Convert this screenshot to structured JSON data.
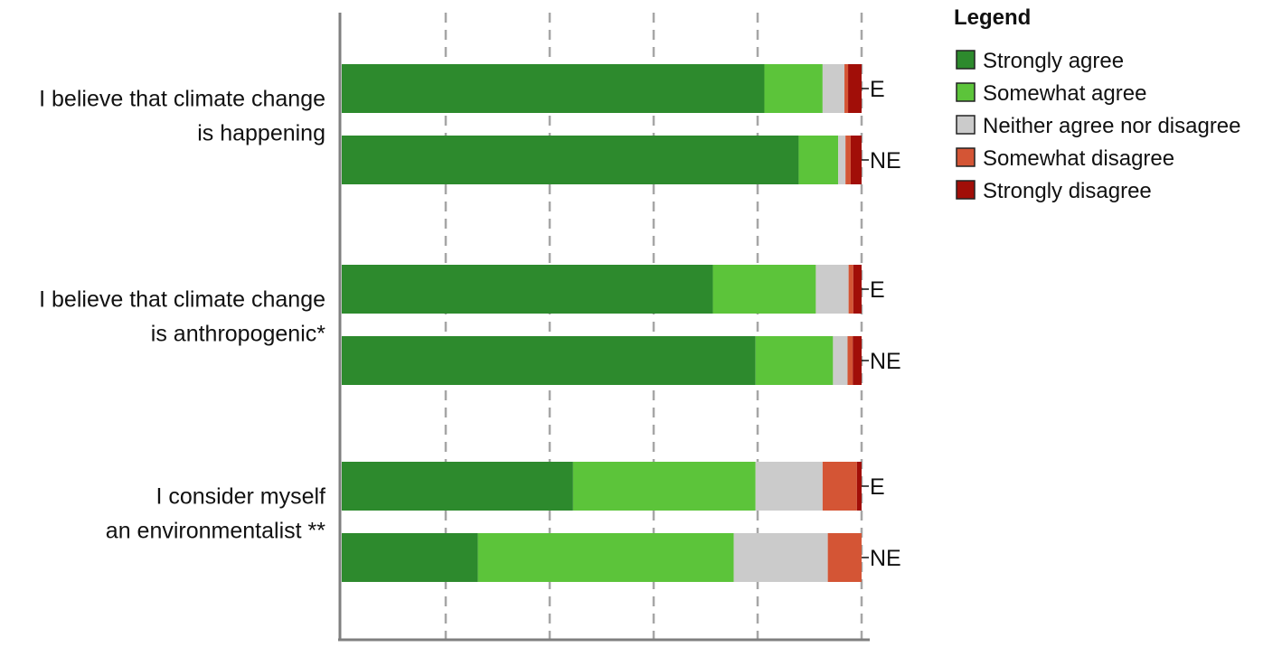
{
  "chart_data": {
    "type": "stacked-bar-horizontal",
    "legend_title": "Legend",
    "legend_placement": "right",
    "xlim": [
      0,
      100
    ],
    "series": [
      {
        "name": "Strongly agree",
        "color": "#2d8a2d"
      },
      {
        "name": "Somewhat agree",
        "color": "#5cc43a"
      },
      {
        "name": "Neither agree nor disagree",
        "color": "#cbcbcb"
      },
      {
        "name": "Somewhat disagree",
        "color": "#d45535"
      },
      {
        "name": "Strongly disagree",
        "color": "#a10e08"
      }
    ],
    "groups": [
      {
        "label_lines": [
          "I believe that climate change",
          "is happening"
        ],
        "bars": [
          {
            "label": "E",
            "values": [
              81.3,
              11.2,
              4.2,
              0.7,
              2.6
            ]
          },
          {
            "label": "NE",
            "values": [
              87.9,
              7.6,
              1.4,
              1.0,
              2.1
            ]
          }
        ]
      },
      {
        "label_lines": [
          "I believe that climate change",
          "is anthropogenic*"
        ],
        "bars": [
          {
            "label": "E",
            "values": [
              71.4,
              19.8,
              6.3,
              0.9,
              1.6
            ]
          },
          {
            "label": "NE",
            "values": [
              79.6,
              14.9,
              2.8,
              1.0,
              1.7
            ]
          }
        ]
      },
      {
        "label_lines": [
          "I consider myself",
          "an environmentalist **"
        ],
        "bars": [
          {
            "label": "E",
            "values": [
              44.5,
              35.1,
              12.9,
              6.6,
              0.9
            ]
          },
          {
            "label": "NE",
            "values": [
              26.2,
              49.2,
              18.1,
              6.5,
              0.0
            ]
          }
        ]
      }
    ],
    "grid": true
  }
}
